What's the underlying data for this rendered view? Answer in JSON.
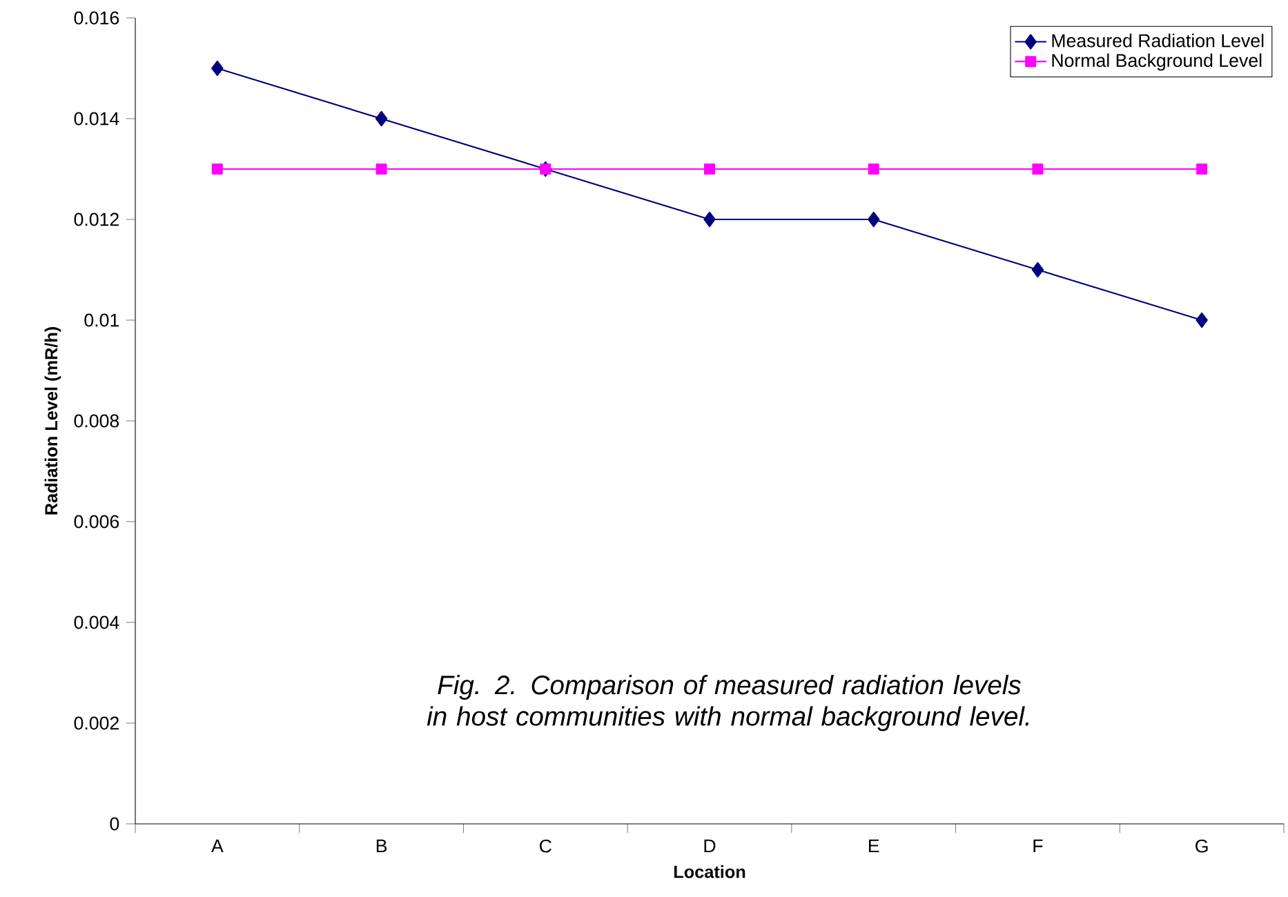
{
  "chart_data": {
    "type": "line",
    "xlabel": "Location",
    "ylabel": "Radiation Level (mR/h)",
    "categories": [
      "A",
      "B",
      "C",
      "D",
      "E",
      "F",
      "G"
    ],
    "series": [
      {
        "name": "Measured Radiation Level",
        "color": "#000080",
        "marker": "diamond",
        "values": [
          0.015,
          0.014,
          0.013,
          0.012,
          0.012,
          0.011,
          0.01
        ]
      },
      {
        "name": "Normal Background Level",
        "color": "#ff00ff",
        "marker": "square",
        "values": [
          0.013,
          0.013,
          0.013,
          0.013,
          0.013,
          0.013,
          0.013
        ]
      }
    ],
    "ylim": [
      0,
      0.016
    ],
    "yticks": [
      0,
      0.002,
      0.004,
      0.006,
      0.008,
      0.01,
      0.012,
      0.014,
      0.016
    ],
    "grid": false,
    "legend": "top right",
    "line_style": "solid",
    "annotations": [
      "Fig. 2. Comparison of measured radiation levels in host communities with normal background level."
    ]
  }
}
